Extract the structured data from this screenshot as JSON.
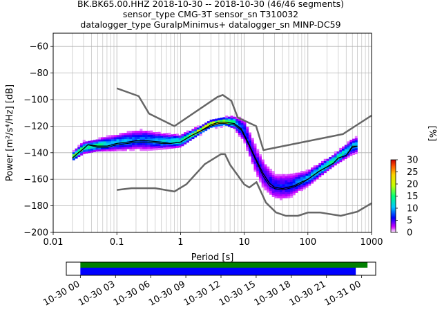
{
  "title": {
    "line1": "BK.BK65.00.HHZ   2018-10-30 -- 2018-10-30  (46/46 segments)",
    "line2": "sensor_type CMG-3T sensor_sn T310032",
    "line3": "datalogger_type GuralpMinimus+ datalogger_sn MINP-DC59"
  },
  "chart_data": [
    {
      "type": "heatmap",
      "name": "ppsd",
      "xlabel": "Period [s]",
      "ylabel": "Power [m²/s⁴/Hz] [dB]",
      "xscale": "log",
      "xlim": [
        0.01,
        1000
      ],
      "ylim": [
        -200,
        -50
      ],
      "xticks": [
        0.01,
        0.1,
        1,
        10,
        100,
        1000
      ],
      "xtick_labels": [
        "0.01",
        "0.1",
        "1",
        "10",
        "100",
        "1000"
      ],
      "yticks": [
        -200,
        -180,
        -160,
        -140,
        -120,
        -100,
        -80,
        -60
      ],
      "ytick_labels": [
        "−200",
        "−180",
        "−160",
        "−140",
        "−120",
        "−100",
        "−80",
        "−60"
      ],
      "grid": true,
      "colorbar": {
        "label": "[%]",
        "range": [
          0,
          30
        ],
        "ticks": [
          0,
          5,
          10,
          15,
          20,
          25,
          30
        ],
        "colormap": "pqlx"
      },
      "series": [
        {
          "role": "high-noise-model",
          "color": "#666666",
          "x": [
            0.1,
            0.22,
            0.32,
            0.8,
            3.8,
            4.6,
            6.3,
            7.9,
            15.4,
            20,
            354.8,
            1000
          ],
          "y": [
            -91.5,
            -97.4,
            -110.5,
            -120,
            -98,
            -96.5,
            -101,
            -113.5,
            -120,
            -138,
            -126,
            -112
          ]
        },
        {
          "role": "low-noise-model",
          "color": "#666666",
          "x": [
            0.1,
            0.17,
            0.4,
            0.8,
            1.24,
            2.4,
            4.3,
            5.0,
            6.0,
            10.0,
            12.0,
            15.6,
            21.9,
            31.6,
            45,
            70,
            101,
            154,
            328,
            600,
            1000
          ],
          "y": [
            -168,
            -166.7,
            -166.7,
            -169.2,
            -163.7,
            -148.6,
            -141.1,
            -141.1,
            -149,
            -163.8,
            -166.2,
            -162.1,
            -177.5,
            -185,
            -187.5,
            -187.5,
            -185,
            -185,
            -187.5,
            -184.4,
            -178
          ]
        },
        {
          "role": "mean",
          "color": "#000000",
          "x": [
            0.02,
            0.025,
            0.03,
            0.035,
            0.05,
            0.07,
            0.1,
            0.15,
            0.2,
            0.3,
            0.5,
            0.7,
            1,
            1.5,
            2,
            3,
            4,
            5,
            7,
            9,
            12,
            15,
            20,
            25,
            30,
            40,
            60,
            80,
            100,
            150,
            250,
            300,
            400,
            500,
            600
          ],
          "y": [
            -144,
            -140,
            -137,
            -134,
            -135,
            -135,
            -133,
            -132,
            -131,
            -131,
            -132,
            -133,
            -132,
            -127,
            -124,
            -119,
            -117,
            -117,
            -118,
            -122,
            -134,
            -144,
            -156,
            -163,
            -166,
            -167,
            -165,
            -162,
            -160,
            -154,
            -148,
            -144,
            -142,
            -136,
            -135
          ]
        },
        {
          "role": "mode",
          "color": "#000000",
          "x": [
            0.02,
            0.025,
            0.03,
            0.035,
            0.05,
            0.07,
            0.1,
            0.15,
            0.2,
            0.3,
            0.5,
            0.7,
            1,
            1.5,
            2,
            3,
            4,
            5,
            7,
            9,
            12,
            15,
            20,
            25,
            30,
            40,
            60,
            80,
            100,
            150,
            250,
            300,
            400,
            500,
            600
          ],
          "y": [
            -144,
            -140,
            -137,
            -134,
            -136,
            -136,
            -134,
            -133,
            -132,
            -132,
            -133,
            -133,
            -132,
            -127,
            -124,
            -120,
            -118,
            -118,
            -119,
            -123,
            -135,
            -145,
            -158,
            -165,
            -167,
            -168,
            -166,
            -163,
            -160,
            -154,
            -148,
            -144,
            -142,
            -135,
            -135
          ]
        }
      ],
      "density": [
        {
          "x": [
            0.02,
            0.03,
            0.05,
            0.1,
            0.2,
            0.3,
            0.5,
            1,
            2,
            3,
            5,
            7,
            10,
            15,
            20,
            30,
            50,
            70,
            100,
            200,
            300,
            500,
            600
          ],
          "center": [
            -144,
            -137,
            -135,
            -133,
            -131,
            -131,
            -132,
            -132,
            -124,
            -119,
            -117,
            -118,
            -124,
            -145,
            -157,
            -166,
            -166,
            -163,
            -160,
            -150,
            -144,
            -136,
            -135
          ],
          "spread": [
            2,
            3,
            3,
            4,
            5,
            5,
            4,
            3,
            2,
            2,
            2,
            3,
            6,
            8,
            8,
            7,
            7,
            5,
            4,
            3,
            3,
            4,
            4
          ]
        }
      ]
    },
    {
      "type": "bar",
      "name": "data-availability",
      "xtick_labels": [
        "10-30 00",
        "10-30 03",
        "10-30 06",
        "10-30 09",
        "10-30 12",
        "10-30 15",
        "10-30 18",
        "10-30 21",
        "10-31 00"
      ],
      "x_hours": [
        0,
        3,
        6,
        9,
        12,
        15,
        18,
        21,
        24
      ],
      "xlim_hours": [
        -1.2,
        25.2
      ],
      "bars": [
        {
          "role": "data-coverage",
          "color": "#008000",
          "start_hour": 0,
          "end_hour": 24.5
        },
        {
          "role": "used-segments",
          "color": "#0000ff",
          "start_hour": 0,
          "end_hour": 23.5
        }
      ]
    }
  ]
}
